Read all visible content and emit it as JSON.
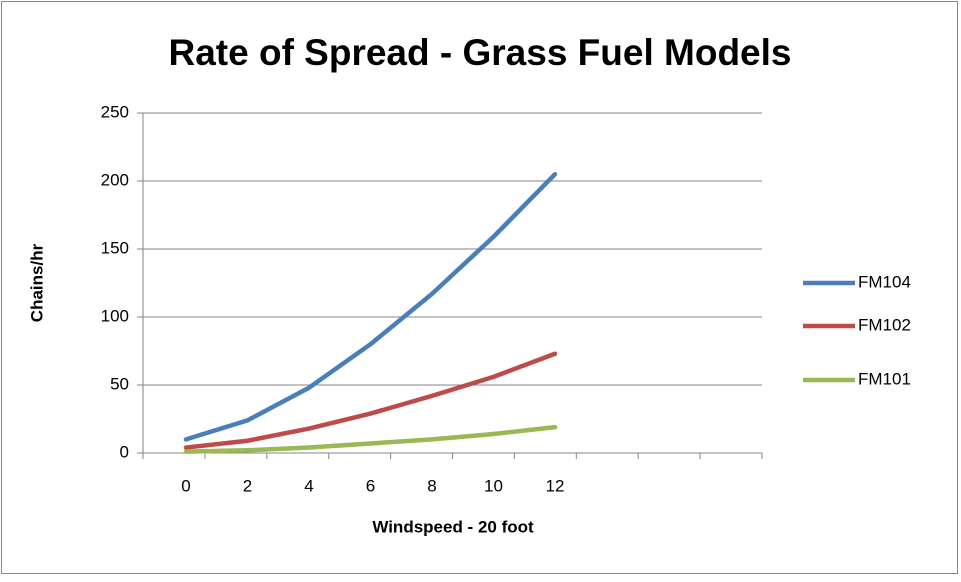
{
  "chart_data": {
    "type": "line",
    "title": "Rate of Spread - Grass Fuel Models",
    "x_label": "Windspeed - 20 foot",
    "y_label": "Chains/hr",
    "categories": [
      "0",
      "2",
      "4",
      "6",
      "8",
      "10",
      "12"
    ],
    "series": [
      {
        "name": "FM104",
        "color": "#4a7ebb",
        "values": [
          10,
          24,
          48,
          80,
          117,
          159,
          205
        ]
      },
      {
        "name": "FM102",
        "color": "#be4b48",
        "values": [
          4,
          9,
          18,
          29,
          42,
          56,
          73
        ]
      },
      {
        "name": "FM101",
        "color": "#98b954",
        "values": [
          1,
          2,
          4,
          7,
          10,
          14,
          19
        ]
      }
    ],
    "ylim": [
      0,
      250
    ],
    "yticks": [
      0,
      50,
      100,
      150,
      200,
      250
    ],
    "grid": true,
    "legend": "right"
  }
}
